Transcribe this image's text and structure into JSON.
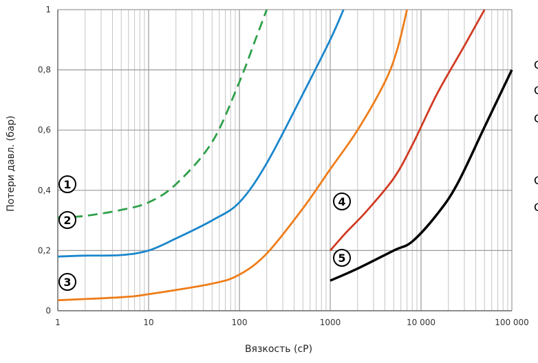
{
  "chart_data": {
    "type": "line",
    "title": "",
    "xlabel": "Вязкость (cP)",
    "ylabel": "Потери давл. (бар)",
    "x_scale": "log",
    "xlim": [
      1,
      100000
    ],
    "ylim": [
      0,
      1
    ],
    "grid": true,
    "x_ticks": [
      {
        "value": 1,
        "label": "1"
      },
      {
        "value": 10,
        "label": "10"
      },
      {
        "value": 100,
        "label": "100"
      },
      {
        "value": 1000,
        "label": "1000"
      },
      {
        "value": 10000,
        "label": "10 000"
      },
      {
        "value": 100000,
        "label": "100 000"
      }
    ],
    "y_ticks": [
      {
        "value": 0,
        "label": "0"
      },
      {
        "value": 0.2,
        "label": "0,2"
      },
      {
        "value": 0.4,
        "label": "0,4"
      },
      {
        "value": 0.6,
        "label": "0,6"
      },
      {
        "value": 0.8,
        "label": "0,8"
      },
      {
        "value": 1,
        "label": "1"
      }
    ],
    "series": [
      {
        "marker": "1",
        "color": "#2ea04a",
        "dashed": true,
        "points": [
          [
            1,
            0.31
          ],
          [
            2,
            0.315
          ],
          [
            5,
            0.335
          ],
          [
            10,
            0.36
          ],
          [
            20,
            0.42
          ],
          [
            50,
            0.56
          ],
          [
            100,
            0.76
          ],
          [
            150,
            0.9
          ],
          [
            200,
            1.0
          ]
        ]
      },
      {
        "marker": "2",
        "color": "#1a86cc",
        "dashed": false,
        "points": [
          [
            1,
            0.18
          ],
          [
            2,
            0.183
          ],
          [
            5,
            0.185
          ],
          [
            10,
            0.2
          ],
          [
            20,
            0.24
          ],
          [
            50,
            0.3
          ],
          [
            100,
            0.36
          ],
          [
            200,
            0.49
          ],
          [
            500,
            0.72
          ],
          [
            1000,
            0.9
          ],
          [
            1400,
            1.0
          ]
        ]
      },
      {
        "marker": "3",
        "color": "#ee7d1a",
        "dashed": false,
        "points": [
          [
            1,
            0.035
          ],
          [
            5,
            0.045
          ],
          [
            10,
            0.055
          ],
          [
            50,
            0.09
          ],
          [
            100,
            0.12
          ],
          [
            200,
            0.19
          ],
          [
            500,
            0.34
          ],
          [
            1000,
            0.47
          ],
          [
            2000,
            0.6
          ],
          [
            4000,
            0.76
          ],
          [
            5500,
            0.87
          ],
          [
            7000,
            1.0
          ]
        ]
      },
      {
        "marker": "4",
        "color": "#d03a22",
        "dashed": false,
        "points": [
          [
            1000,
            0.2
          ],
          [
            1500,
            0.26
          ],
          [
            2500,
            0.33
          ],
          [
            5000,
            0.44
          ],
          [
            8000,
            0.55
          ],
          [
            15000,
            0.72
          ],
          [
            30000,
            0.88
          ],
          [
            50000,
            1.0
          ]
        ]
      },
      {
        "marker": "5",
        "color": "#000000",
        "dashed": false,
        "points": [
          [
            1000,
            0.1
          ],
          [
            2000,
            0.14
          ],
          [
            5000,
            0.2
          ],
          [
            8000,
            0.23
          ],
          [
            15000,
            0.32
          ],
          [
            25000,
            0.42
          ],
          [
            50000,
            0.61
          ],
          [
            100000,
            0.8
          ]
        ]
      }
    ],
    "side_letters": [
      "C",
      "C",
      "C",
      "C",
      "C"
    ]
  }
}
